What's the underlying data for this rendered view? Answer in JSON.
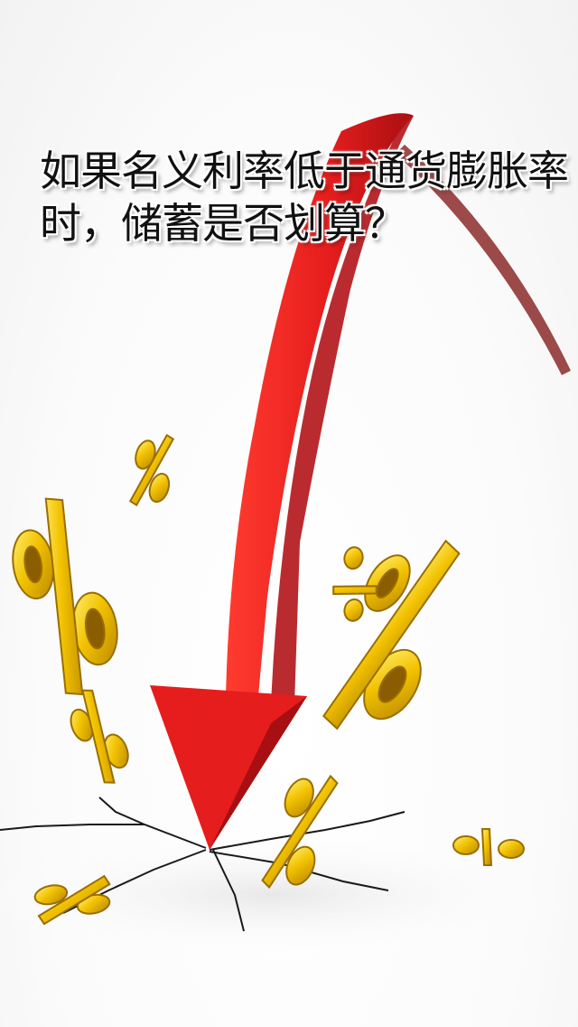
{
  "headline": "如果名义利率低于通货膨胀率时，储蓄是否划算？",
  "colors": {
    "arrow_red": "#e51d1d",
    "arrow_dark": "#a80f12",
    "gold": "#f2c200",
    "gold_dark": "#b88600",
    "crack": "#1a1a1a"
  },
  "icons": [
    "falling-red-arrow",
    "percent-sign",
    "ground-crack"
  ],
  "percent_glyph": "%"
}
